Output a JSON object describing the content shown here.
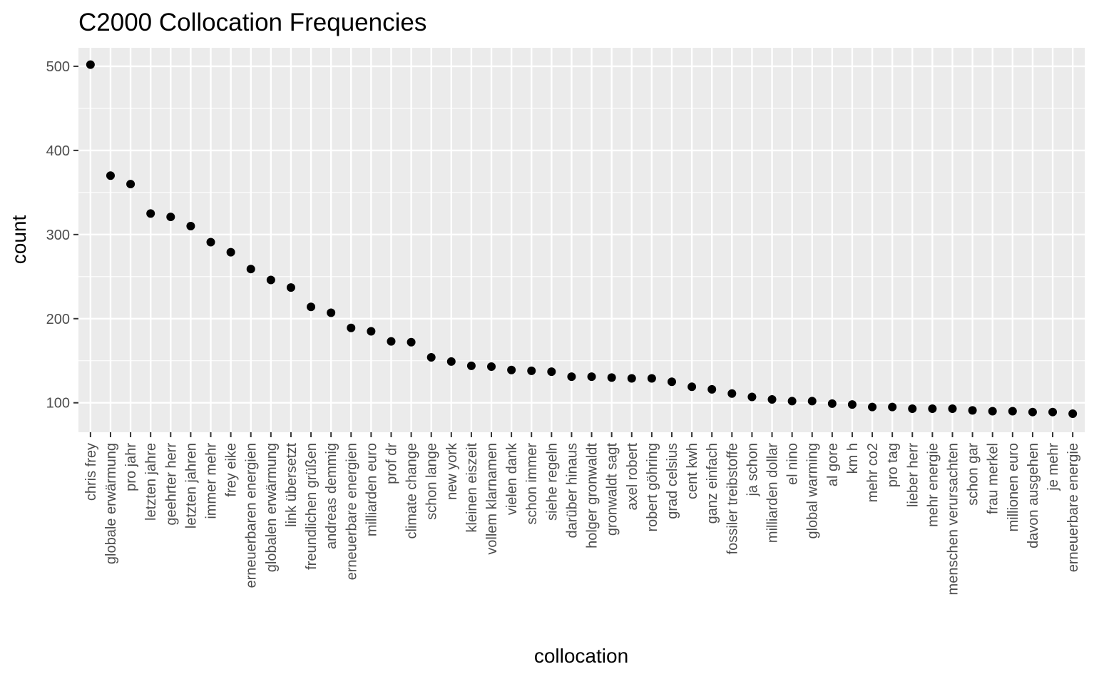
{
  "chart_data": {
    "type": "scatter",
    "title": "C2000 Collocation Frequencies",
    "xlabel": "collocation",
    "ylabel": "count",
    "ylim": [
      65,
      522
    ],
    "yticks": [
      100,
      200,
      300,
      400,
      500
    ],
    "grid": true,
    "legend": "none",
    "point_color": "#000000",
    "panel_color": "#ebebeb",
    "categories": [
      "chris frey",
      "globale erwärmung",
      "pro jahr",
      "letzten jahre",
      "geehrter herr",
      "letzten jahren",
      "immer mehr",
      "frey eike",
      "erneuerbaren energien",
      "globalen erwärmung",
      "link übersetzt",
      "freundlichen grüßen",
      "andreas demmig",
      "erneuerbare energien",
      "milliarden euro",
      "prof dr",
      "climate change",
      "schon lange",
      "new york",
      "kleinen eiszeit",
      "vollem klarnamen",
      "vielen dank",
      "schon immer",
      "siehe regeln",
      "darüber hinaus",
      "holger gronwaldt",
      "gronwaldt sagt",
      "axel robert",
      "robert göhring",
      "grad celsius",
      "cent kwh",
      "ganz einfach",
      "fossiler treibstoffe",
      "ja schon",
      "milliarden dollar",
      "el nino",
      "global warming",
      "al gore",
      "km h",
      "mehr co2",
      "pro tag",
      "lieber herr",
      "mehr energie",
      "menschen verursachten",
      "schon gar",
      "frau merkel",
      "millionen euro",
      "davon ausgehen",
      "je mehr",
      "erneuerbare energie"
    ],
    "values": [
      502,
      370,
      360,
      325,
      321,
      310,
      291,
      279,
      259,
      246,
      237,
      214,
      207,
      189,
      185,
      173,
      172,
      154,
      149,
      144,
      143,
      139,
      138,
      137,
      131,
      131,
      130,
      129,
      129,
      125,
      119,
      116,
      111,
      107,
      104,
      102,
      102,
      99,
      98,
      95,
      95,
      93,
      93,
      93,
      91,
      90,
      90,
      89,
      89,
      87
    ]
  }
}
